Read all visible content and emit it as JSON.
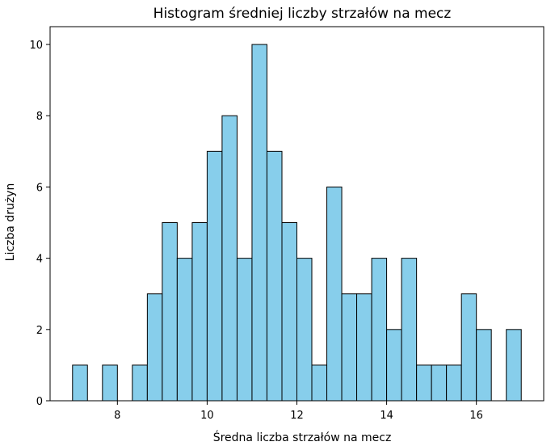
{
  "chart_data": {
    "type": "bar",
    "title": "Histogram średniej liczby strzałów na mecz",
    "xlabel": "Średna liczba strzałów na mecz",
    "ylabel": "Liczba drużyn",
    "xlim": [
      6.5,
      17.5
    ],
    "ylim": [
      0,
      10.5
    ],
    "xticks": [
      8,
      10,
      12,
      14,
      16
    ],
    "yticks": [
      0,
      2,
      4,
      6,
      8,
      10
    ],
    "bin_edges": [
      7.0,
      7.333,
      7.667,
      8.0,
      8.333,
      8.667,
      9.0,
      9.333,
      9.667,
      10.0,
      10.333,
      10.667,
      11.0,
      11.333,
      11.667,
      12.0,
      12.333,
      12.667,
      13.0,
      13.333,
      13.667,
      14.0,
      14.333,
      14.667,
      15.0,
      15.333,
      15.667,
      16.0,
      16.333,
      16.667,
      17.0
    ],
    "counts": [
      1,
      0,
      1,
      0,
      1,
      3,
      5,
      4,
      5,
      7,
      8,
      4,
      10,
      7,
      5,
      4,
      1,
      6,
      3,
      3,
      4,
      2,
      4,
      1,
      1,
      1,
      3,
      2,
      0,
      2
    ],
    "bar_color": "#87ceeb",
    "edge_color": "#000000",
    "grid": false,
    "legend": false
  }
}
